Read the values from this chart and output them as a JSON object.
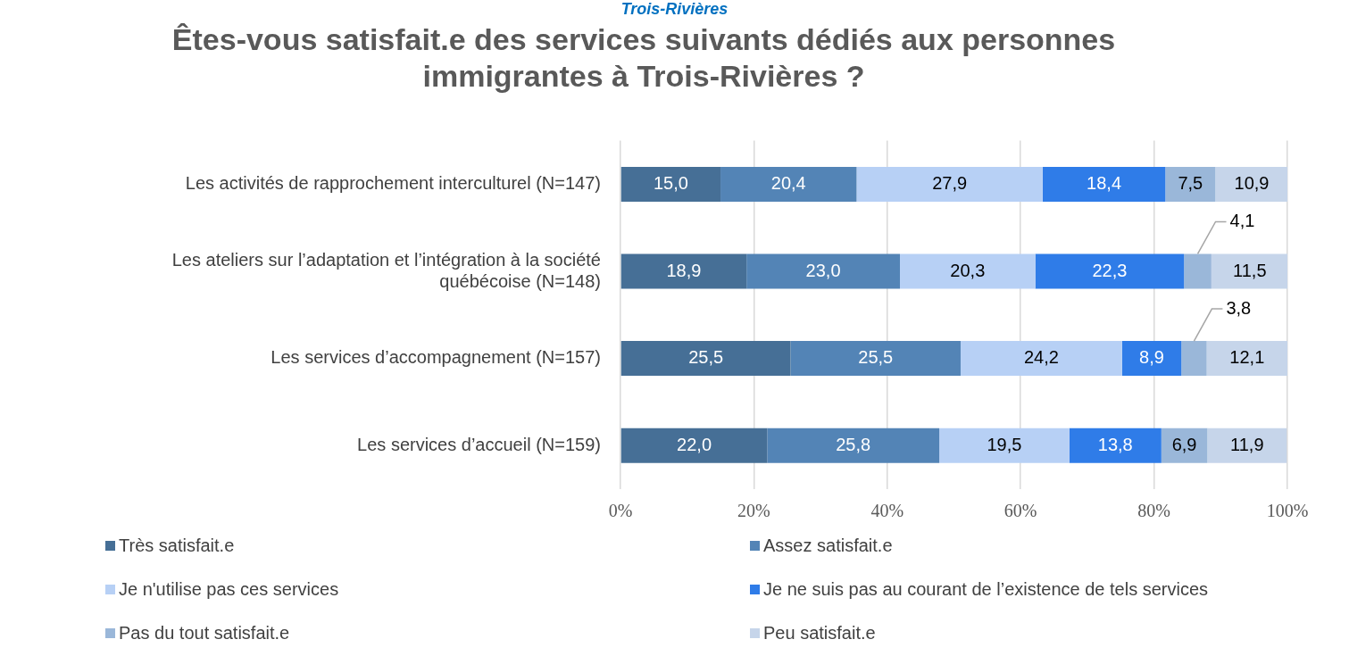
{
  "chart_data": {
    "type": "bar",
    "orientation": "horizontal",
    "stacked": true,
    "title": "Êtes-vous satisfait.e des services suivants dédiés aux personnes immigrantes à Trois-Rivières ?",
    "annotations": [
      "Trois-Rivières"
    ],
    "categories": [
      "Les activités de rapprochement interculturel (N=147)",
      "Les ateliers sur l’adaptation et l’intégration à la société québécoise (N=148)",
      "Les services d’accompagnement (N=157)",
      "Les services d’accueil (N=159)"
    ],
    "series": [
      {
        "name": "Très satisfait.e",
        "color": "#466f96",
        "values": [
          15.0,
          18.9,
          25.5,
          22.0
        ],
        "value_labels": [
          "15,0",
          "18,9",
          "25,5",
          "22,0"
        ]
      },
      {
        "name": "Assez satisfait.e",
        "color": "#5384b6",
        "values": [
          20.4,
          23.0,
          25.5,
          25.8
        ],
        "value_labels": [
          "20,4",
          "23,0",
          "25,5",
          "25,8"
        ]
      },
      {
        "name": "Je n'utilise pas ces services",
        "color": "#b7d0f5",
        "values": [
          27.9,
          20.3,
          24.2,
          19.5
        ],
        "value_labels": [
          "27,9",
          "20,3",
          "24,2",
          "19,5"
        ]
      },
      {
        "name": "Je ne suis pas au courant de l’existence de tels services",
        "color": "#2f7ce8",
        "values": [
          18.4,
          22.3,
          8.9,
          13.8
        ],
        "value_labels": [
          "18,4",
          "22,3",
          "8,9",
          "13,8"
        ]
      },
      {
        "name": "Pas du tout satisfait.e",
        "color": "#9ab7d9",
        "values": [
          7.5,
          4.1,
          3.8,
          6.9
        ],
        "value_labels": [
          "7,5",
          "4,1",
          "3,8",
          "6,9"
        ]
      },
      {
        "name": "Peu satisfait.e",
        "color": "#c6d5ea",
        "values": [
          10.9,
          11.5,
          12.1,
          11.9
        ],
        "value_labels": [
          "10,9",
          "11,5",
          "12,1",
          "11,9"
        ]
      }
    ],
    "xlim": [
      0,
      100
    ],
    "xticks": [
      {
        "value": 0,
        "label": "0%"
      },
      {
        "value": 20,
        "label": "20%"
      },
      {
        "value": 40,
        "label": "40%"
      },
      {
        "value": 60,
        "label": "60%"
      },
      {
        "value": 80,
        "label": "80%"
      },
      {
        "value": 100,
        "label": "100%"
      }
    ],
    "grid": "x",
    "legend": "bottom"
  }
}
